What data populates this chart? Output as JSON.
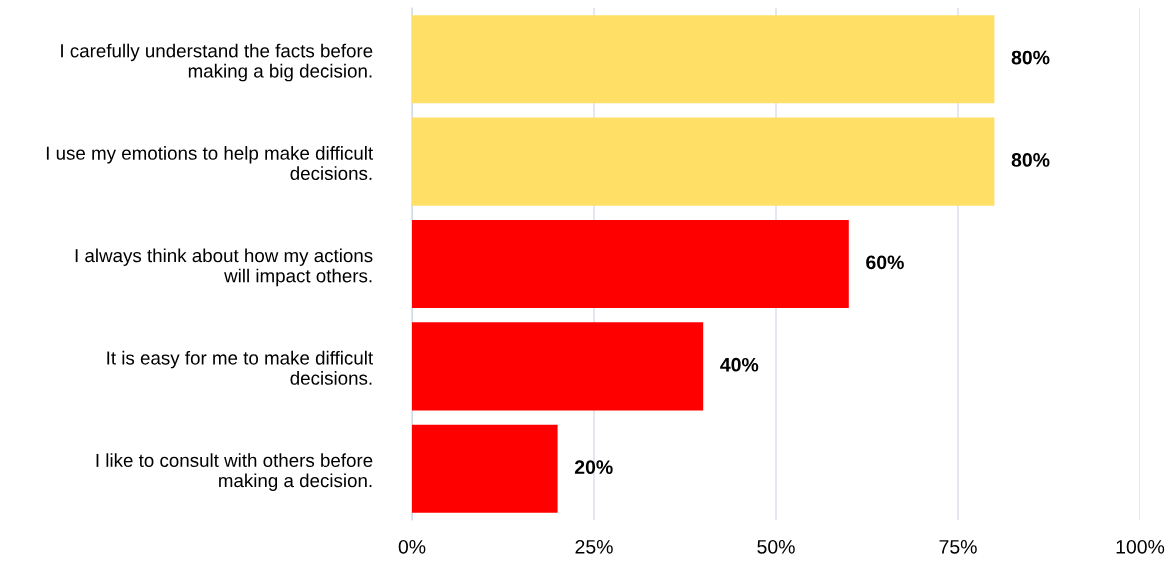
{
  "chart_data": {
    "type": "bar",
    "orientation": "horizontal",
    "categories": [
      "I carefully understand the facts before\nmaking a big decision.",
      "I use my emotions to help make difficult\ndecisions.",
      "I always think about how my actions\nwill impact others.",
      "It is easy for me to make difficult\ndecisions.",
      "I like to consult with others before\nmaking a decision."
    ],
    "values": [
      80,
      80,
      60,
      40,
      20
    ],
    "colors": [
      "#ffdf66",
      "#ffdf66",
      "#ff0000",
      "#ff0000",
      "#ff0000"
    ],
    "value_labels": [
      "80%",
      "80%",
      "60%",
      "40%",
      "20%"
    ],
    "xlim": [
      0,
      100
    ],
    "xticks": [
      {
        "value": 0,
        "label": "0%"
      },
      {
        "value": 25,
        "label": "25%"
      },
      {
        "value": 50,
        "label": "50%"
      },
      {
        "value": 75,
        "label": "75%"
      },
      {
        "value": 100,
        "label": "100%"
      }
    ],
    "grid": "x",
    "legend": false
  }
}
